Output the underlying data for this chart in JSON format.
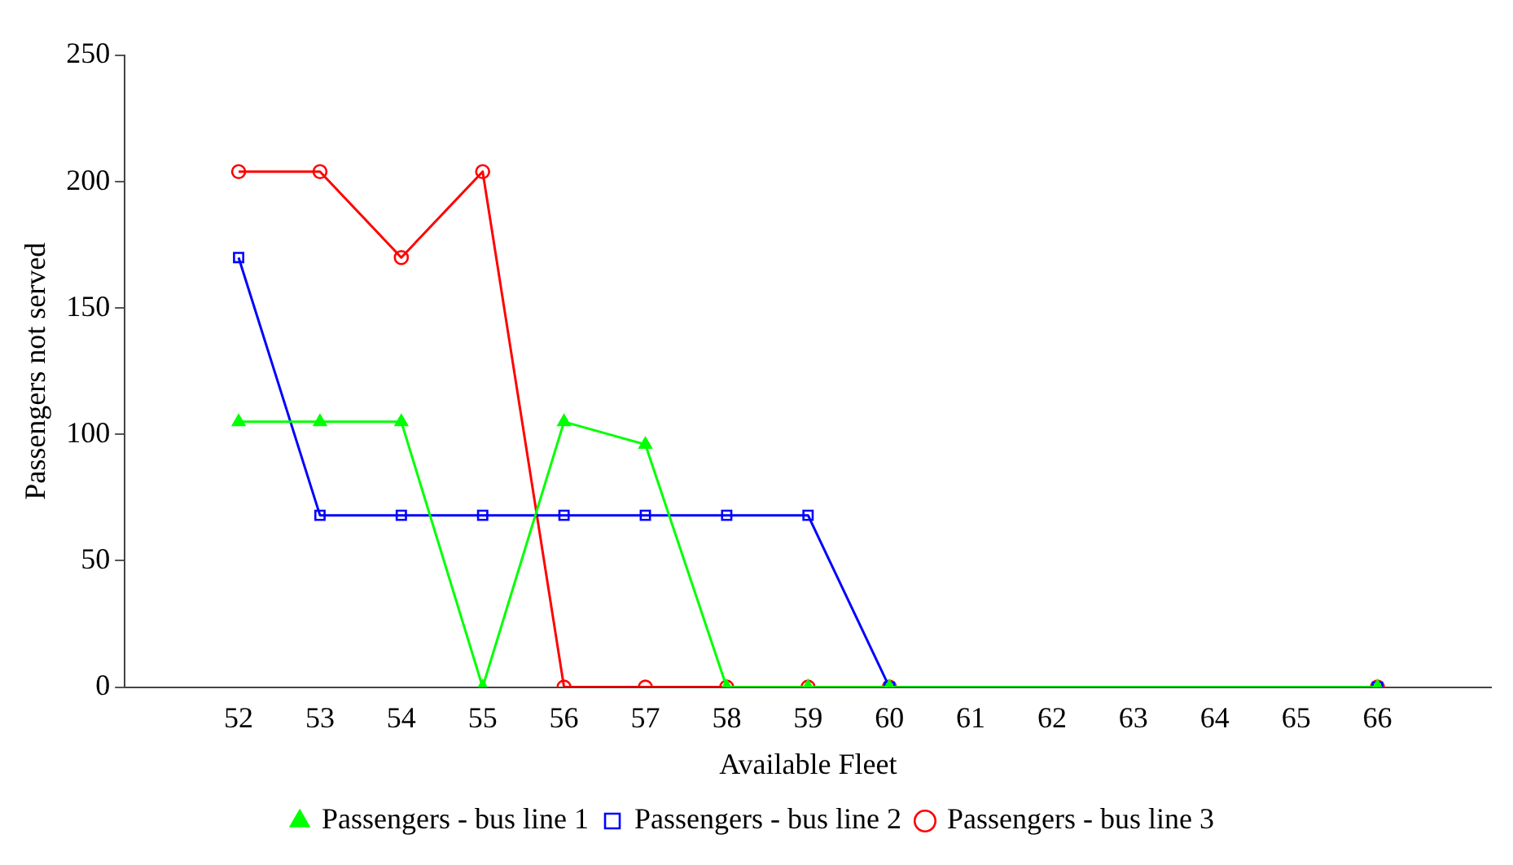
{
  "chart_data": {
    "type": "line",
    "xlabel": "Available Fleet",
    "ylabel": "Passengers not served",
    "xlim": [
      50.6,
      67.4
    ],
    "xticks": [
      52,
      53,
      54,
      55,
      56,
      57,
      58,
      59,
      60,
      61,
      62,
      63,
      64,
      65,
      66
    ],
    "ylim": [
      0,
      250
    ],
    "yticks": [
      0,
      50,
      100,
      150,
      200,
      250
    ],
    "grid": false,
    "legend": "bottom",
    "line_style": "solid",
    "series": [
      {
        "name": "Passengers - bus line 1",
        "color": "#00ff00",
        "marker": "triangle",
        "x": [
          52,
          53,
          54,
          55,
          56,
          57,
          58,
          59,
          60,
          66
        ],
        "values": [
          105,
          105,
          105,
          0,
          105,
          96,
          0,
          0,
          0,
          0
        ]
      },
      {
        "name": "Passengers - bus line 2",
        "color": "#0000ff",
        "marker": "square",
        "x": [
          52,
          53,
          54,
          55,
          56,
          57,
          58,
          59,
          60,
          66
        ],
        "values": [
          170,
          68,
          68,
          68,
          68,
          68,
          68,
          68,
          0,
          0
        ]
      },
      {
        "name": "Passengers - bus line 3",
        "color": "#ff0000",
        "marker": "circle",
        "x": [
          52,
          53,
          54,
          55,
          56,
          57,
          58,
          59,
          60,
          66
        ],
        "values": [
          204,
          204,
          170,
          204,
          0,
          0,
          0,
          0,
          0,
          0
        ]
      }
    ]
  }
}
